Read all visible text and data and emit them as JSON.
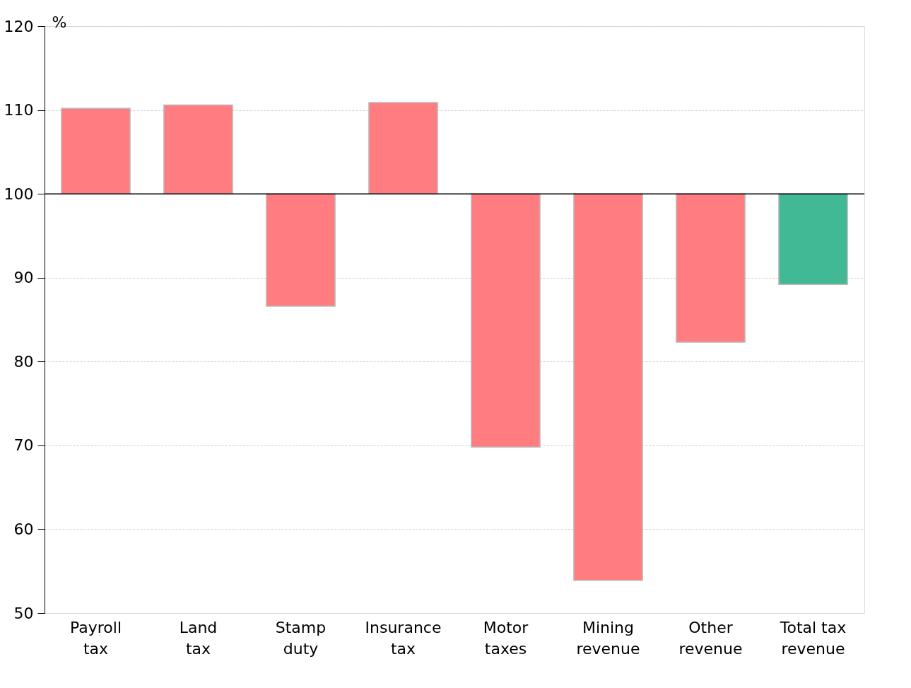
{
  "chart_data": {
    "type": "bar",
    "ylabel": "%",
    "categories": [
      "Payroll\ntax",
      "Land\ntax",
      "Stamp\nduty",
      "Insurance\ntax",
      "Motor\ntaxes",
      "Mining\nrevenue",
      "Other\nrevenue",
      "Total tax\nrevenue"
    ],
    "base": [
      100,
      100,
      100,
      100,
      100,
      100,
      100,
      100
    ],
    "values": [
      10.2,
      10.6,
      -13.4,
      10.9,
      -30.2,
      -46.1,
      -17.7,
      -10.8
    ],
    "colors": [
      "#ff7c80",
      "#ff7c80",
      "#ff7c80",
      "#ff7c80",
      "#ff7c80",
      "#ff7c80",
      "#ff7c80",
      "#40b994"
    ],
    "ylim": [
      50,
      120
    ],
    "yticks": [
      50,
      60,
      70,
      80,
      90,
      100,
      110,
      120
    ],
    "grid": "y",
    "ref_lines": [
      {
        "axis": "y",
        "value": 100,
        "color": "#000000"
      }
    ]
  }
}
